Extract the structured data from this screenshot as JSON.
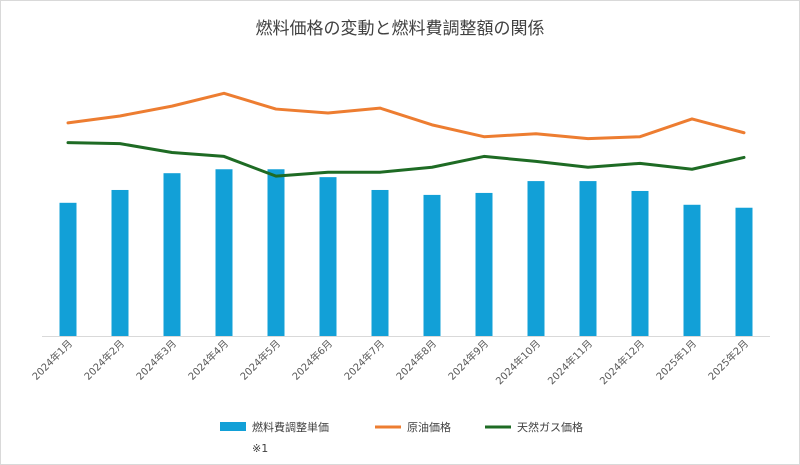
{
  "chart_data": {
    "type": "bar",
    "title": "燃料価格の変動と燃料費調整額の関係",
    "categories": [
      "2024年1月",
      "2024年2月",
      "2024年3月",
      "2024年4月",
      "2024年5月",
      "2024年6月",
      "2024年7月",
      "2024年8月",
      "2024年9月",
      "2024年10月",
      "2024年11月",
      "2024年12月",
      "2025年1月",
      "2025年2月"
    ],
    "series": [
      {
        "name": "燃料費調整単価",
        "type": "bar",
        "color": "#12a0d7",
        "values": [
          135,
          148,
          165,
          169,
          169,
          161,
          148,
          143,
          145,
          157,
          157,
          147,
          133,
          130
        ]
      },
      {
        "name": "原油価格",
        "type": "line",
        "color": "#ed7d31",
        "values": [
          216,
          223,
          233,
          246,
          230,
          226,
          231,
          214,
          202,
          205,
          200,
          202,
          220,
          206
        ]
      },
      {
        "name": "天然ガス価格",
        "type": "line",
        "color": "#1e6b24",
        "values": [
          196,
          195,
          186,
          182,
          162,
          166,
          166,
          171,
          182,
          177,
          171,
          175,
          169,
          181
        ]
      }
    ],
    "ylim": [
      0,
      300
    ],
    "xlabel": "",
    "ylabel": "",
    "grid": false,
    "legend": "bottom",
    "note": "※1"
  }
}
